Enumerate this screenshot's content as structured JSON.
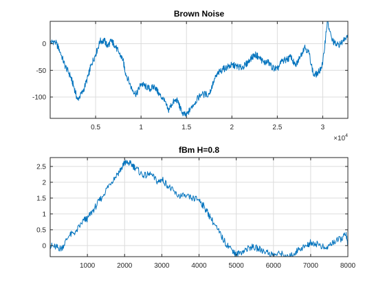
{
  "chart_data": [
    {
      "type": "line",
      "title": "Brown Noise",
      "xlabel": "",
      "ylabel": "",
      "xlim": [
        0,
        32768
      ],
      "ylim": [
        -140,
        42
      ],
      "xticks": [
        5000,
        10000,
        15000,
        20000,
        25000,
        30000
      ],
      "xtick_labels": [
        "0.5",
        "1",
        "1.5",
        "2",
        "2.5",
        "3"
      ],
      "x_exponent_label": "×10",
      "x_exponent_power": "4",
      "yticks": [
        0,
        -50,
        -100
      ],
      "ytick_labels": [
        "0",
        "-50",
        "-100"
      ],
      "grid": true,
      "color": "#0072BD",
      "series": [
        {
          "x": [
            0,
            500,
            1000,
            1600,
            2200,
            2600,
            3000,
            3600,
            4200,
            4500,
            5000,
            5500,
            6000,
            6300,
            6700,
            7000,
            7500,
            8000,
            8300,
            9000,
            9500,
            10000,
            10500,
            11000,
            11500,
            12000,
            12500,
            13000,
            13500,
            14000,
            14500,
            15000,
            15500,
            16000,
            16600,
            17500,
            18000,
            18500,
            19000,
            19500,
            20000,
            20500,
            21000,
            21500,
            22000,
            22500,
            23000,
            23500,
            24000,
            24500,
            25000,
            25500,
            26000,
            26500,
            27000,
            27500,
            28000,
            28500,
            29000,
            29500,
            30000,
            30500,
            31000,
            31500,
            32000,
            32768
          ],
          "y": [
            2,
            5,
            -10,
            -40,
            -60,
            -80,
            -105,
            -90,
            -60,
            -40,
            -20,
            5,
            5,
            -5,
            5,
            0,
            -15,
            -30,
            -55,
            -85,
            -95,
            -75,
            -80,
            -85,
            -80,
            -95,
            -105,
            -125,
            -110,
            -105,
            -130,
            -135,
            -120,
            -108,
            -95,
            -95,
            -70,
            -55,
            -48,
            -44,
            -40,
            -42,
            -45,
            -40,
            -30,
            -20,
            -25,
            -35,
            -35,
            -45,
            -48,
            -33,
            -30,
            -25,
            -42,
            -25,
            -5,
            -18,
            -60,
            -55,
            -38,
            42,
            8,
            -3,
            0,
            18
          ]
        }
      ]
    },
    {
      "type": "line",
      "title": "fBm H=0.8",
      "xlabel": "",
      "ylabel": "",
      "xlim": [
        0,
        8000
      ],
      "ylim": [
        -0.35,
        2.78
      ],
      "xticks": [
        1000,
        2000,
        3000,
        4000,
        5000,
        6000,
        7000,
        8000
      ],
      "xtick_labels": [
        "1000",
        "2000",
        "3000",
        "4000",
        "5000",
        "6000",
        "7000",
        "8000"
      ],
      "yticks": [
        0,
        0.5,
        1,
        1.5,
        2,
        2.5
      ],
      "ytick_labels": [
        "0",
        "0.5",
        "1",
        "1.5",
        "2",
        "2.5"
      ],
      "grid": true,
      "color": "#0072BD",
      "series": [
        {
          "x": [
            0,
            150,
            300,
            500,
            700,
            900,
            1000,
            1200,
            1400,
            1600,
            1800,
            1950,
            2000,
            2150,
            2300,
            2500,
            2700,
            2900,
            3000,
            3200,
            3400,
            3600,
            3800,
            4000,
            4150,
            4300,
            4500,
            4700,
            4900,
            5000,
            5200,
            5400,
            5600,
            5800,
            6000,
            6200,
            6400,
            6500,
            6700,
            6900,
            7000,
            7200,
            7400,
            7600,
            7800,
            7950,
            8000
          ],
          "y": [
            0.0,
            -0.05,
            -0.1,
            0.3,
            0.45,
            0.8,
            0.85,
            1.2,
            1.55,
            1.95,
            2.25,
            2.5,
            2.62,
            2.6,
            2.45,
            2.2,
            2.25,
            2.0,
            2.1,
            1.85,
            1.6,
            1.55,
            1.5,
            1.45,
            1.2,
            0.9,
            0.5,
            0.1,
            -0.15,
            -0.3,
            -0.15,
            -0.05,
            -0.1,
            -0.2,
            -0.3,
            -0.25,
            -0.4,
            -0.3,
            -0.1,
            0.0,
            0.1,
            0.05,
            -0.1,
            0.1,
            0.2,
            0.35,
            0.0
          ]
        }
      ]
    }
  ]
}
